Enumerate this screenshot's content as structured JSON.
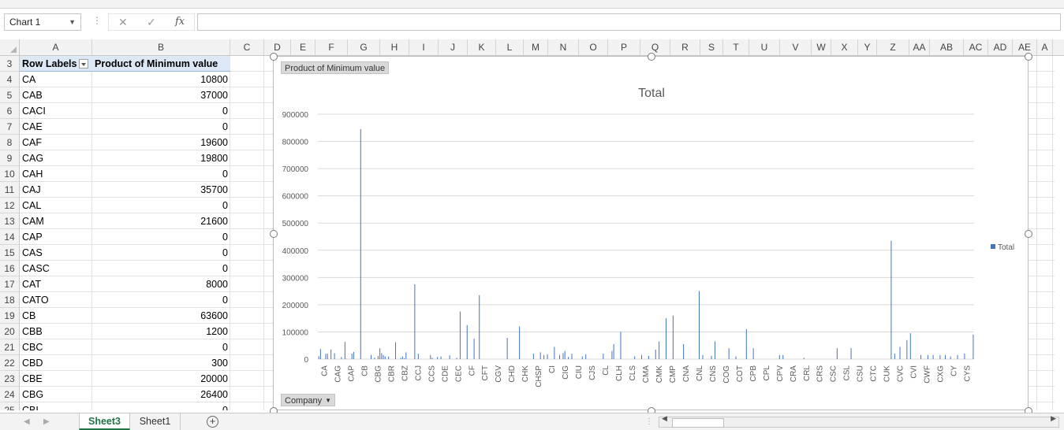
{
  "formula_bar": {
    "name_box": "Chart 1",
    "cancel_icon": "cancel-icon",
    "enter_icon": "check-icon",
    "fx_label": "fx",
    "formula": ""
  },
  "columns": [
    "A",
    "B",
    "C",
    "D",
    "E",
    "F",
    "G",
    "H",
    "I",
    "J",
    "K",
    "L",
    "M",
    "N",
    "O",
    "P",
    "Q",
    "R",
    "S",
    "T",
    "U",
    "V",
    "W",
    "X",
    "Y",
    "Z",
    "AA",
    "AB",
    "AC",
    "AD",
    "AE",
    "A"
  ],
  "rows": [
    {
      "n": "3",
      "label": "Row Labels",
      "value": "Product of Minimum value",
      "header": true
    },
    {
      "n": "4",
      "label": "CA",
      "value": "10800"
    },
    {
      "n": "5",
      "label": "CAB",
      "value": "37000"
    },
    {
      "n": "6",
      "label": "CACI",
      "value": "0"
    },
    {
      "n": "7",
      "label": "CAE",
      "value": "0"
    },
    {
      "n": "8",
      "label": "CAF",
      "value": "19600"
    },
    {
      "n": "9",
      "label": "CAG",
      "value": "19800"
    },
    {
      "n": "10",
      "label": "CAH",
      "value": "0"
    },
    {
      "n": "11",
      "label": "CAJ",
      "value": "35700"
    },
    {
      "n": "12",
      "label": "CAL",
      "value": "0"
    },
    {
      "n": "13",
      "label": "CAM",
      "value": "21600"
    },
    {
      "n": "14",
      "label": "CAP",
      "value": "0"
    },
    {
      "n": "15",
      "label": "CAS",
      "value": "0"
    },
    {
      "n": "16",
      "label": "CASC",
      "value": "0"
    },
    {
      "n": "17",
      "label": "CAT",
      "value": "8000"
    },
    {
      "n": "18",
      "label": "CATO",
      "value": "0"
    },
    {
      "n": "19",
      "label": "CB",
      "value": "63600"
    },
    {
      "n": "20",
      "label": "CBB",
      "value": "1200"
    },
    {
      "n": "21",
      "label": "CBC",
      "value": "0"
    },
    {
      "n": "22",
      "label": "CBD",
      "value": "300"
    },
    {
      "n": "23",
      "label": "CBE",
      "value": "20000"
    },
    {
      "n": "24",
      "label": "CBG",
      "value": "26400"
    },
    {
      "n": "25",
      "label": "CBI",
      "value": "0"
    }
  ],
  "chart": {
    "value_field_button": "Product of Minimum  value",
    "axis_field_button": "Company",
    "legend_label": "Total",
    "bar_color": "#4472c4"
  },
  "chart_data": {
    "type": "bar",
    "title": "Total",
    "xlabel": "",
    "ylabel": "",
    "ylim": [
      0,
      900000
    ],
    "yticks": [
      0,
      100000,
      200000,
      300000,
      400000,
      500000,
      600000,
      700000,
      800000,
      900000
    ],
    "legend": "right",
    "grid": true,
    "tick_labels": [
      "CA",
      "CAG",
      "CAP",
      "CB",
      "CBG",
      "CBR",
      "CBZ",
      "CCJ",
      "CCS",
      "CDE",
      "CEC",
      "CF",
      "CFT",
      "CGV",
      "CHD",
      "CHK",
      "CHSP",
      "CI",
      "CIG",
      "CIU",
      "CJS",
      "CL",
      "CLH",
      "CLS",
      "CMA",
      "CMK",
      "CMP",
      "CNA",
      "CNL",
      "CNS",
      "COG",
      "COT",
      "CPB",
      "CPL",
      "CPV",
      "CRA",
      "CRL",
      "CRS",
      "CSC",
      "CSL",
      "CSU",
      "CTC",
      "CUK",
      "CVC",
      "CVI",
      "CWF",
      "CXG",
      "CY",
      "CYS"
    ],
    "series": [
      {
        "name": "Total",
        "values": [
          10800,
          37000,
          0,
          0,
          19600,
          19800,
          0,
          35700,
          0,
          21600,
          0,
          0,
          0,
          8000,
          0,
          63600,
          1200,
          0,
          300,
          20000,
          26400,
          0,
          0,
          0,
          845000,
          0,
          0,
          0,
          0,
          0,
          15000,
          0,
          5000,
          0,
          12000,
          40000,
          22000,
          15000,
          10000,
          0,
          9000,
          0,
          0,
          0,
          62000,
          0,
          0,
          5000,
          10000,
          3000,
          25000,
          0,
          0,
          0,
          0,
          275000,
          0,
          20000,
          0,
          0,
          0,
          0,
          0,
          0,
          15000,
          5000,
          0,
          0,
          8000,
          0,
          10000,
          0,
          0,
          0,
          0,
          14000,
          0,
          0,
          0,
          5000,
          0,
          175000,
          0,
          0,
          0,
          125000,
          0,
          0,
          0,
          75000,
          0,
          0,
          235000,
          0,
          0,
          0,
          0,
          0,
          0,
          0,
          0,
          0,
          0,
          0,
          0,
          0,
          0,
          0,
          78000,
          0,
          0,
          0,
          0,
          0,
          0,
          120000,
          0,
          0,
          0,
          0,
          0,
          0,
          0,
          20000,
          0,
          0,
          0,
          25000,
          0,
          15000,
          0,
          18000,
          0,
          0,
          0,
          45000,
          0,
          0,
          15000,
          0,
          22000,
          30000,
          0,
          8000,
          0,
          20000,
          0,
          0,
          0,
          0,
          0,
          10000,
          0,
          18000,
          0,
          0,
          0,
          0,
          0,
          0,
          0,
          0,
          0,
          20000,
          0,
          0,
          0,
          0,
          30000,
          55000,
          0,
          0,
          0,
          100000,
          0,
          0,
          0,
          0,
          0,
          0,
          0,
          10000,
          0,
          0,
          0,
          15000,
          0,
          0,
          0,
          12000,
          0,
          0,
          0,
          35000,
          0,
          65000,
          0,
          0,
          0,
          150000,
          0,
          0,
          0,
          160000,
          0,
          0,
          0,
          0,
          0,
          55000,
          0,
          0,
          0,
          0,
          0,
          0,
          0,
          0,
          250000,
          0,
          15000,
          0,
          0,
          0,
          0,
          12000,
          0,
          65000,
          0,
          0,
          0,
          0,
          0,
          0,
          0,
          40000,
          0,
          0,
          0,
          10000,
          0,
          0,
          0,
          0,
          0,
          110000,
          0,
          0,
          0,
          40000,
          0,
          0,
          0,
          0,
          0,
          0,
          0,
          0,
          0,
          0,
          0,
          0,
          0,
          0,
          15000,
          0,
          15000,
          0,
          0,
          0,
          0,
          0,
          0,
          0,
          0,
          0,
          0,
          0,
          5000,
          0,
          0,
          0,
          0,
          0,
          0,
          0,
          0,
          0,
          0,
          0,
          0,
          0,
          0,
          0,
          0,
          0,
          0,
          40000,
          0,
          0,
          0,
          0,
          0,
          0,
          0,
          40000,
          0,
          0,
          0,
          0,
          0,
          0,
          0,
          0,
          0,
          0,
          0,
          0,
          0,
          0,
          0,
          0,
          0,
          0,
          0,
          0,
          0,
          0,
          435000,
          0,
          20000,
          0,
          0,
          45000,
          0,
          0,
          0,
          70000,
          0,
          95000,
          0,
          0,
          0,
          0,
          0,
          15000,
          0,
          0,
          0,
          15000,
          0,
          0,
          15000,
          0,
          0,
          0,
          15000,
          0,
          0,
          15000,
          0,
          0,
          10000,
          0,
          0,
          0,
          15000,
          0,
          0,
          0,
          20000,
          0,
          0,
          0,
          0,
          90000
        ]
      }
    ]
  },
  "sheet_tabs": [
    {
      "label": "Sheet3",
      "active": true
    },
    {
      "label": "Sheet1",
      "active": false
    }
  ]
}
